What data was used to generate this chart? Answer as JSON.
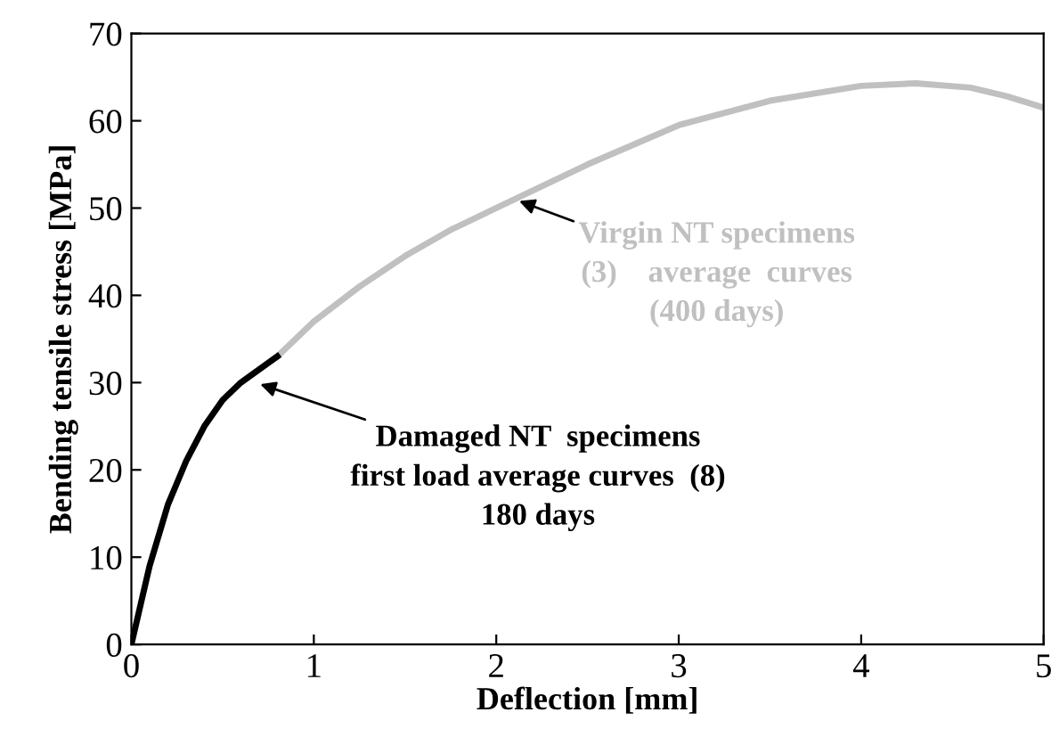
{
  "chart_data": {
    "type": "line",
    "xlabel": "Deflection [mm]",
    "ylabel": "Bending tensile stress [MPa]",
    "xlim": [
      0,
      5
    ],
    "ylim": [
      0,
      70
    ],
    "xticks": [
      0,
      1,
      2,
      3,
      4,
      5
    ],
    "yticks": [
      0,
      10,
      20,
      30,
      40,
      50,
      60,
      70
    ],
    "grid": false,
    "legend": false,
    "marker": "none",
    "line_style": "solid",
    "series": [
      {
        "color": "#c0c0c0",
        "x": [
          0.8,
          1.0,
          1.25,
          1.5,
          1.75,
          2.0,
          2.1,
          2.5,
          3.0,
          3.5,
          4.0,
          4.3,
          4.6,
          4.8,
          5.0
        ],
        "values": [
          33,
          37,
          41,
          44.5,
          47.5,
          50,
          51,
          55,
          59.5,
          62.3,
          64,
          64.3,
          63.8,
          62.8,
          61.5
        ]
      },
      {
        "color": "#000000",
        "x": [
          0,
          0.05,
          0.1,
          0.2,
          0.3,
          0.4,
          0.5,
          0.6,
          0.7,
          0.8
        ],
        "values": [
          0,
          4.5,
          9,
          16,
          21,
          25,
          28,
          30,
          31.5,
          33
        ]
      }
    ],
    "annotations": [
      {
        "text": "Virgin NT specimens\n(3)    average  curves\n(400 days)",
        "x": 2.1,
        "y": 51
      },
      {
        "text": "Damaged NT  specimens\nfirst load average curves  (8)\n180 days",
        "x": 0.68,
        "y": 30
      }
    ]
  }
}
